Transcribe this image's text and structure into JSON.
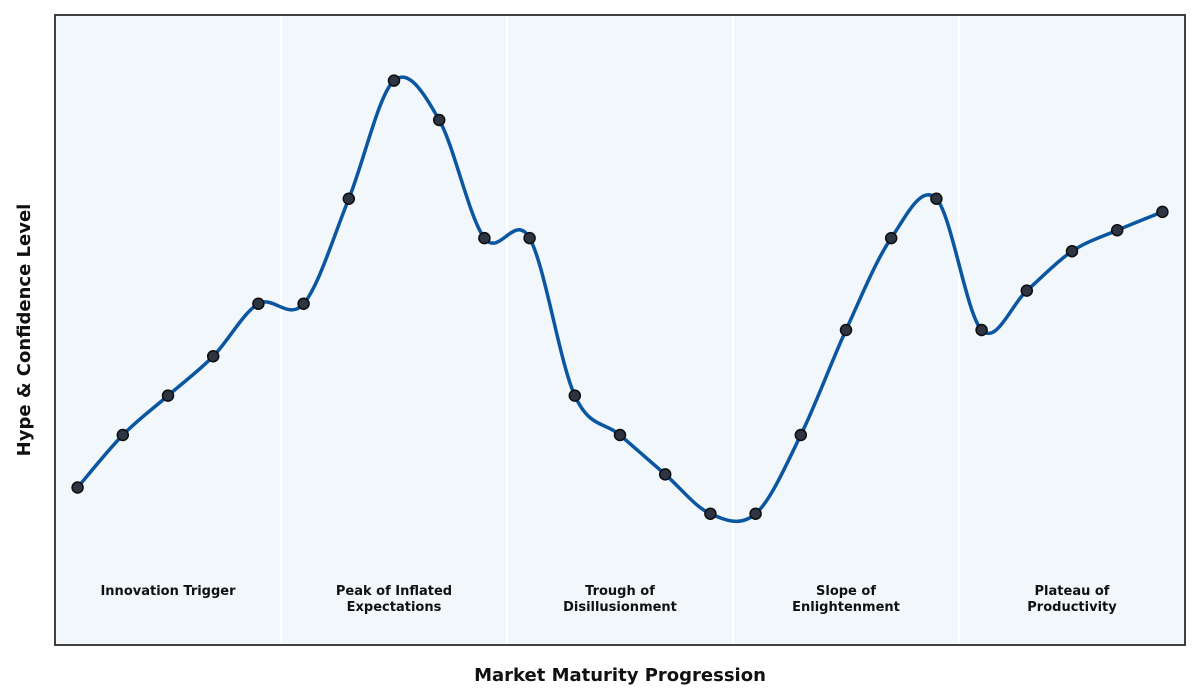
{
  "chart_data": {
    "type": "line",
    "title": "",
    "xlabel": "Market Maturity Progression",
    "ylabel": "Hype & Confidence Level",
    "x": [
      1,
      2,
      3,
      4,
      5,
      6,
      7,
      8,
      9,
      10,
      11,
      12,
      13,
      14,
      15,
      16,
      17,
      18,
      19,
      20,
      21,
      22,
      23,
      24,
      25
    ],
    "series": [
      {
        "values": [
          3.0,
          5.0,
          6.5,
          8.0,
          10.0,
          10.0,
          14.0,
          18.5,
          17.0,
          12.5,
          12.5,
          6.5,
          5.0,
          3.5,
          2.0,
          2.0,
          5.0,
          9.0,
          12.5,
          14.0,
          9.0,
          10.5,
          12.0,
          12.8,
          13.5
        ]
      }
    ],
    "xlim": [
      0.5,
      25.5
    ],
    "ylim": [
      -3.0,
      21.0
    ],
    "grid": false,
    "legend": "none",
    "phases": [
      {
        "label_lines": [
          "Innovation Trigger"
        ],
        "x_start": 0.5,
        "x_end": 5.5,
        "x_center": 3
      },
      {
        "label_lines": [
          "Peak of Inflated",
          "Expectations"
        ],
        "x_start": 5.5,
        "x_end": 10.5,
        "x_center": 8
      },
      {
        "label_lines": [
          "Trough of",
          "Disillusionment"
        ],
        "x_start": 10.5,
        "x_end": 15.5,
        "x_center": 13
      },
      {
        "label_lines": [
          "Slope of",
          "Enlightenment"
        ],
        "x_start": 15.5,
        "x_end": 20.5,
        "x_center": 18
      },
      {
        "label_lines": [
          "Plateau of",
          "Productivity"
        ],
        "x_start": 20.5,
        "x_end": 25.5,
        "x_center": 23
      }
    ],
    "colors": {
      "line": "#0a56a0",
      "marker_fill": "#2d3542",
      "marker_edge": "#0d0d0d",
      "plot_background": "#f2f7fb",
      "phase_divider": "#ffffff",
      "frame": "#2b2b2b"
    }
  }
}
